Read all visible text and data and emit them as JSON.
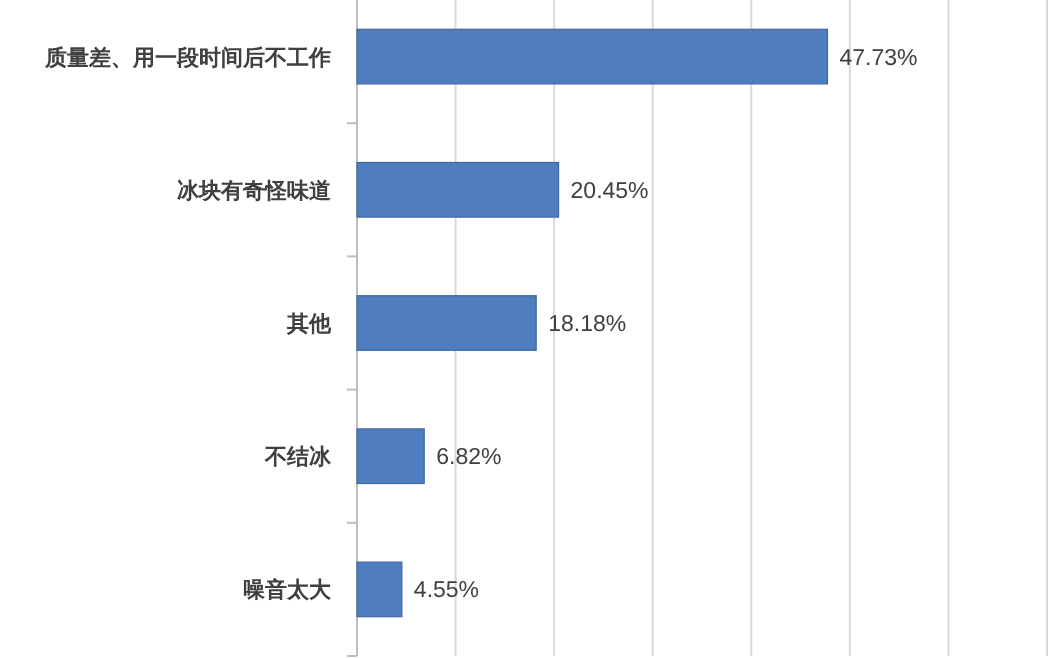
{
  "chart_data": {
    "type": "bar",
    "orientation": "horizontal",
    "categories": [
      "质量差、用一段时间后不工作",
      "冰块有奇怪味道",
      "其他",
      "不结冰",
      "噪音太大"
    ],
    "values": [
      47.73,
      20.45,
      18.18,
      6.82,
      4.55
    ],
    "value_labels": [
      "47.73%",
      "20.45%",
      "18.18%",
      "6.82%",
      "4.55%"
    ],
    "color": "#4f7dbd",
    "xlim": [
      0,
      70
    ],
    "xticks": [
      {
        "value": 0,
        "label": null
      },
      {
        "value": 10,
        "label": null
      },
      {
        "value": 20,
        "label": null
      },
      {
        "value": 30,
        "label": null
      },
      {
        "value": 40,
        "label": null
      },
      {
        "value": 50,
        "label": null
      },
      {
        "value": 60,
        "label": null
      },
      {
        "value": 70,
        "label": null
      }
    ],
    "grid": "x",
    "tick_labels": "y"
  }
}
